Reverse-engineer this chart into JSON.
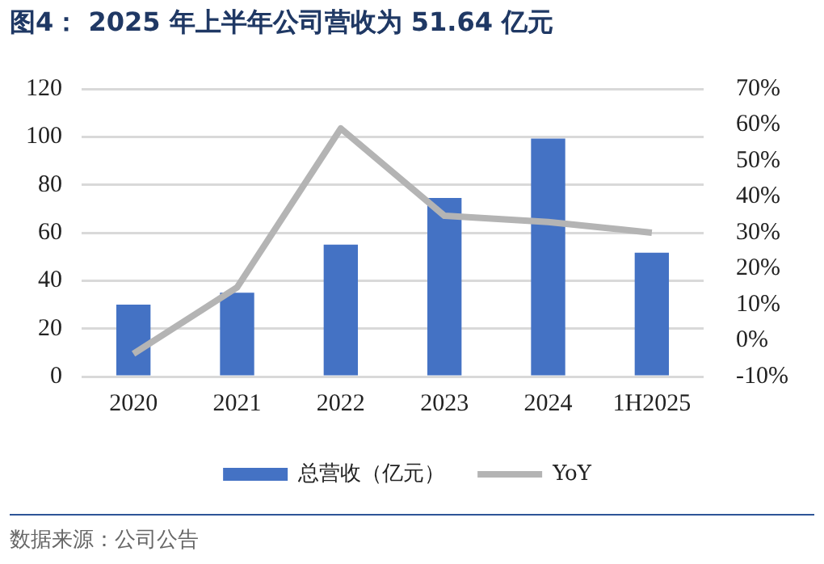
{
  "chart_data": {
    "type": "bar",
    "title": "图4： 2025 年上半年公司营收为 51.64 亿元",
    "categories": [
      "2020",
      "2021",
      "2022",
      "2023",
      "2024",
      "1H2025"
    ],
    "series": [
      {
        "name": "总营收（亿元）",
        "color": "#4472c4",
        "values": [
          30,
          35,
          55,
          74.5,
          99.3,
          51.64
        ]
      },
      {
        "name": "YoY",
        "type": "line",
        "axis": "y2",
        "color": "#b4b4b4",
        "values": [
          -3.7,
          14.8,
          59,
          34.7,
          33,
          30
        ]
      }
    ],
    "ylim": [
      0,
      120
    ],
    "yticks": [
      0,
      20,
      40,
      60,
      80,
      100,
      120
    ],
    "y2lim": [
      -10,
      70
    ],
    "y2ticks": [
      {
        "value": -10,
        "label": "-10%"
      },
      {
        "value": 0,
        "label": "0%"
      },
      {
        "value": 10,
        "label": "10%"
      },
      {
        "value": 20,
        "label": "20%"
      },
      {
        "value": 30,
        "label": "30%"
      },
      {
        "value": 40,
        "label": "40%"
      },
      {
        "value": 50,
        "label": "50%"
      },
      {
        "value": 60,
        "label": "60%"
      },
      {
        "value": 70,
        "label": "70%"
      }
    ],
    "grid": "y",
    "legend": "bottom",
    "marker": "none",
    "annotations": [
      "数据来源：公司公告"
    ]
  }
}
